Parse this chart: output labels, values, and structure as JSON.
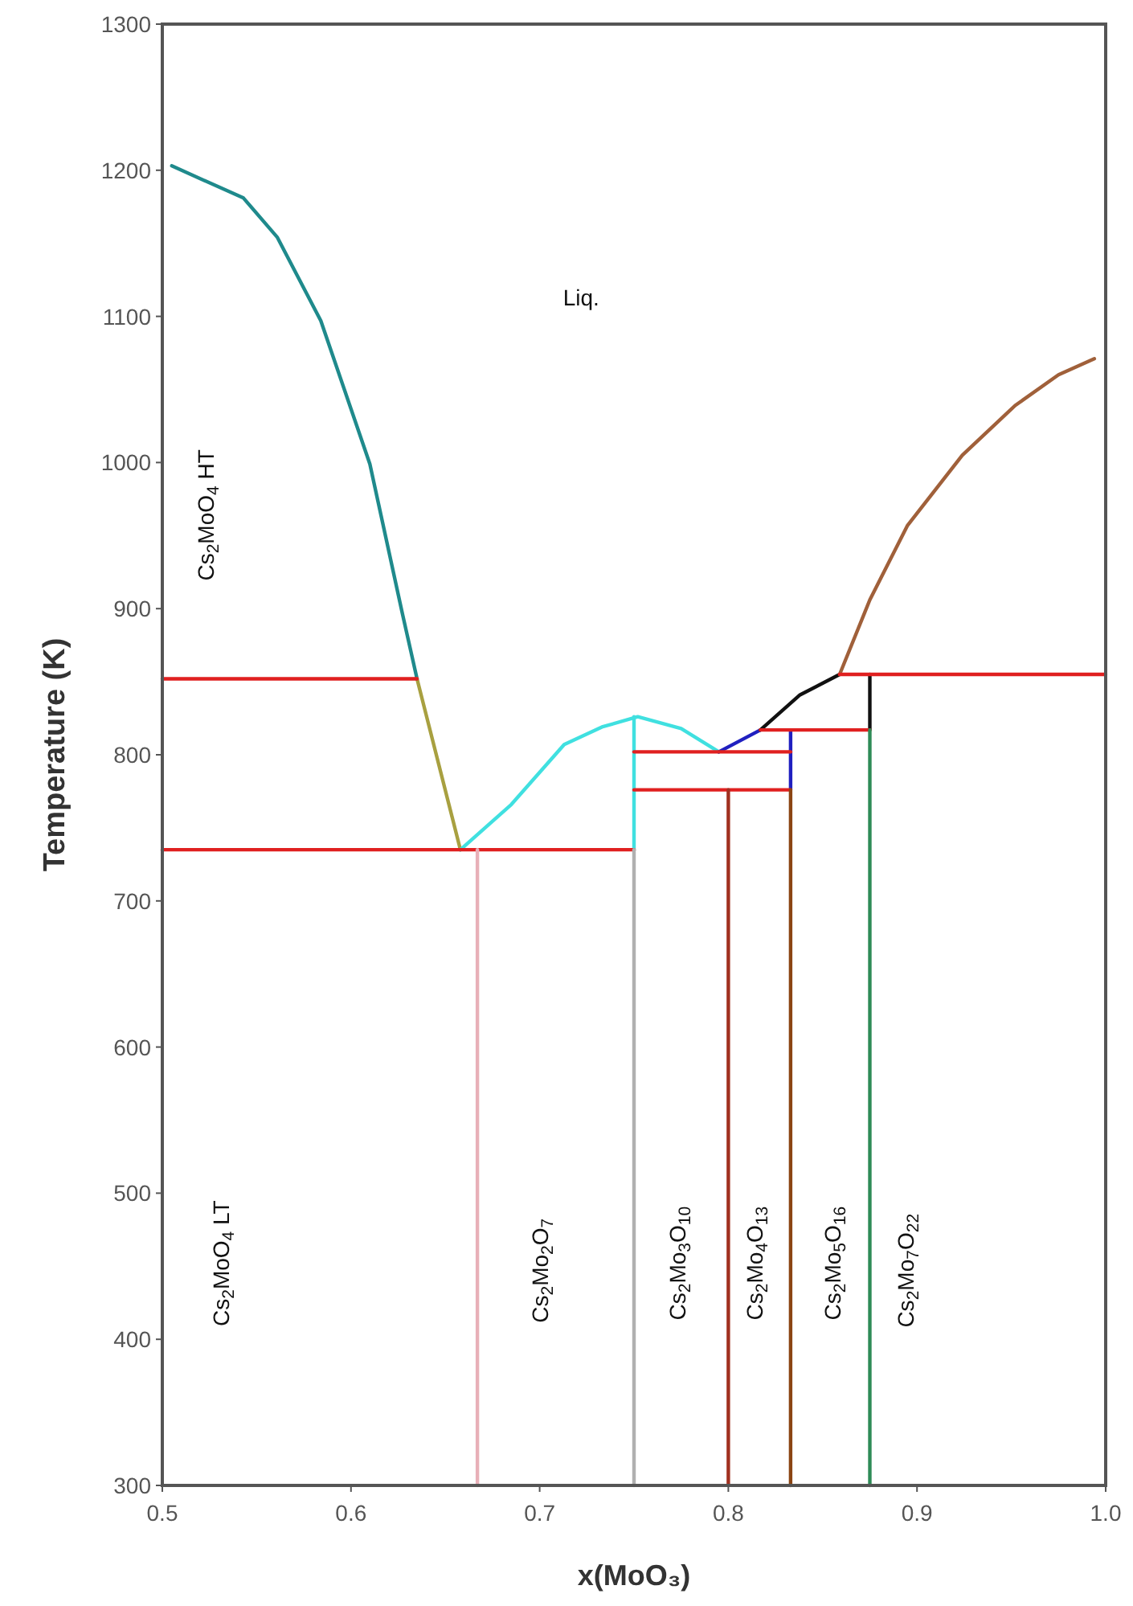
{
  "chart_data": {
    "type": "line",
    "xlabel": "x(MoO₃)",
    "ylabel": "Temperature (K)",
    "xlim": [
      0.5,
      1.0
    ],
    "xticks": [
      0.5,
      0.6,
      0.7,
      0.8,
      0.9,
      {
        "value": 1,
        "label": "1.0"
      }
    ],
    "ylim": [
      300,
      1300
    ],
    "yticks": [
      300,
      400,
      500,
      600,
      700,
      800,
      900,
      1000,
      1100,
      1200,
      1300
    ],
    "grid": false,
    "marker": "none",
    "line_style": "solid",
    "series": [
      {
        "color": "#1f8a8c",
        "x": [
          0.505,
          0.543,
          0.561,
          0.584,
          0.61,
          0.627,
          0.635
        ],
        "values": [
          1203,
          1181,
          1154,
          1097,
          999,
          898,
          852
        ]
      },
      {
        "color": "#a8a040",
        "x": [
          0.635,
          0.658
        ],
        "values": [
          852,
          735
        ]
      },
      {
        "color": "#40e0e0",
        "x": [
          0.658,
          0.685,
          0.713,
          0.733,
          0.752,
          0.775,
          0.795
        ],
        "values": [
          735,
          766,
          807,
          819,
          826,
          818,
          802
        ]
      },
      {
        "color": "#40e0e0",
        "x": [
          0.75,
          0.75
        ],
        "values": [
          735,
          826
        ]
      },
      {
        "color": "#2020c0",
        "x": [
          0.795,
          0.817
        ],
        "values": [
          802,
          817
        ]
      },
      {
        "color": "#2020c0",
        "x": [
          0.833,
          0.833
        ],
        "values": [
          776,
          817
        ]
      },
      {
        "color": "#111111",
        "x": [
          0.817,
          0.838,
          0.859
        ],
        "values": [
          817,
          841,
          855
        ]
      },
      {
        "color": "#111111",
        "x": [
          0.875,
          0.875
        ],
        "values": [
          817,
          855
        ]
      },
      {
        "color": "#a0603a",
        "x": [
          0.859,
          0.875,
          0.895,
          0.924,
          0.952,
          0.975,
          0.994
        ],
        "values": [
          855,
          906,
          957,
          1005,
          1039,
          1060,
          1071
        ]
      },
      {
        "color": "#e02020",
        "x": [
          0.5,
          0.635
        ],
        "values": [
          852,
          852
        ]
      },
      {
        "color": "#e02020",
        "x": [
          0.5,
          0.75
        ],
        "values": [
          735,
          735
        ]
      },
      {
        "color": "#e02020",
        "x": [
          0.75,
          0.833
        ],
        "values": [
          802,
          802
        ]
      },
      {
        "color": "#e02020",
        "x": [
          0.75,
          0.833
        ],
        "values": [
          776,
          776
        ]
      },
      {
        "color": "#e02020",
        "x": [
          0.817,
          0.875
        ],
        "values": [
          817,
          817
        ]
      },
      {
        "color": "#e02020",
        "x": [
          0.859,
          1.0
        ],
        "values": [
          855,
          855
        ]
      },
      {
        "color": "#e8b0b8",
        "x": [
          0.667,
          0.667
        ],
        "values": [
          300,
          735
        ]
      },
      {
        "color": "#b0b0b0",
        "x": [
          0.75,
          0.75
        ],
        "values": [
          300,
          735
        ]
      },
      {
        "color": "#a03020",
        "x": [
          0.8,
          0.8
        ],
        "values": [
          300,
          776
        ]
      },
      {
        "color": "#8b4513",
        "x": [
          0.833,
          0.833
        ],
        "values": [
          300,
          776
        ]
      },
      {
        "color": "#2e8b57",
        "x": [
          0.875,
          0.875
        ],
        "values": [
          300,
          817
        ]
      }
    ],
    "annotations": [
      "Liq.",
      "Cs$_{2}$MoO$_{4}$ HT",
      "Cs$_{2}$MoO$_{4}$ LT",
      "Cs$_{2}$Mo$_{2}$O$_{7}$",
      "Cs$_{2}$Mo$_{3}$O$_{10}$",
      "Cs$_{2}$Mo$_{4}$O$_{13}$",
      "Cs$_{2}$Mo$_{5}$O$_{16}$",
      "Cs$_{2}$Mo$_{7}$O$_{22}$"
    ]
  }
}
